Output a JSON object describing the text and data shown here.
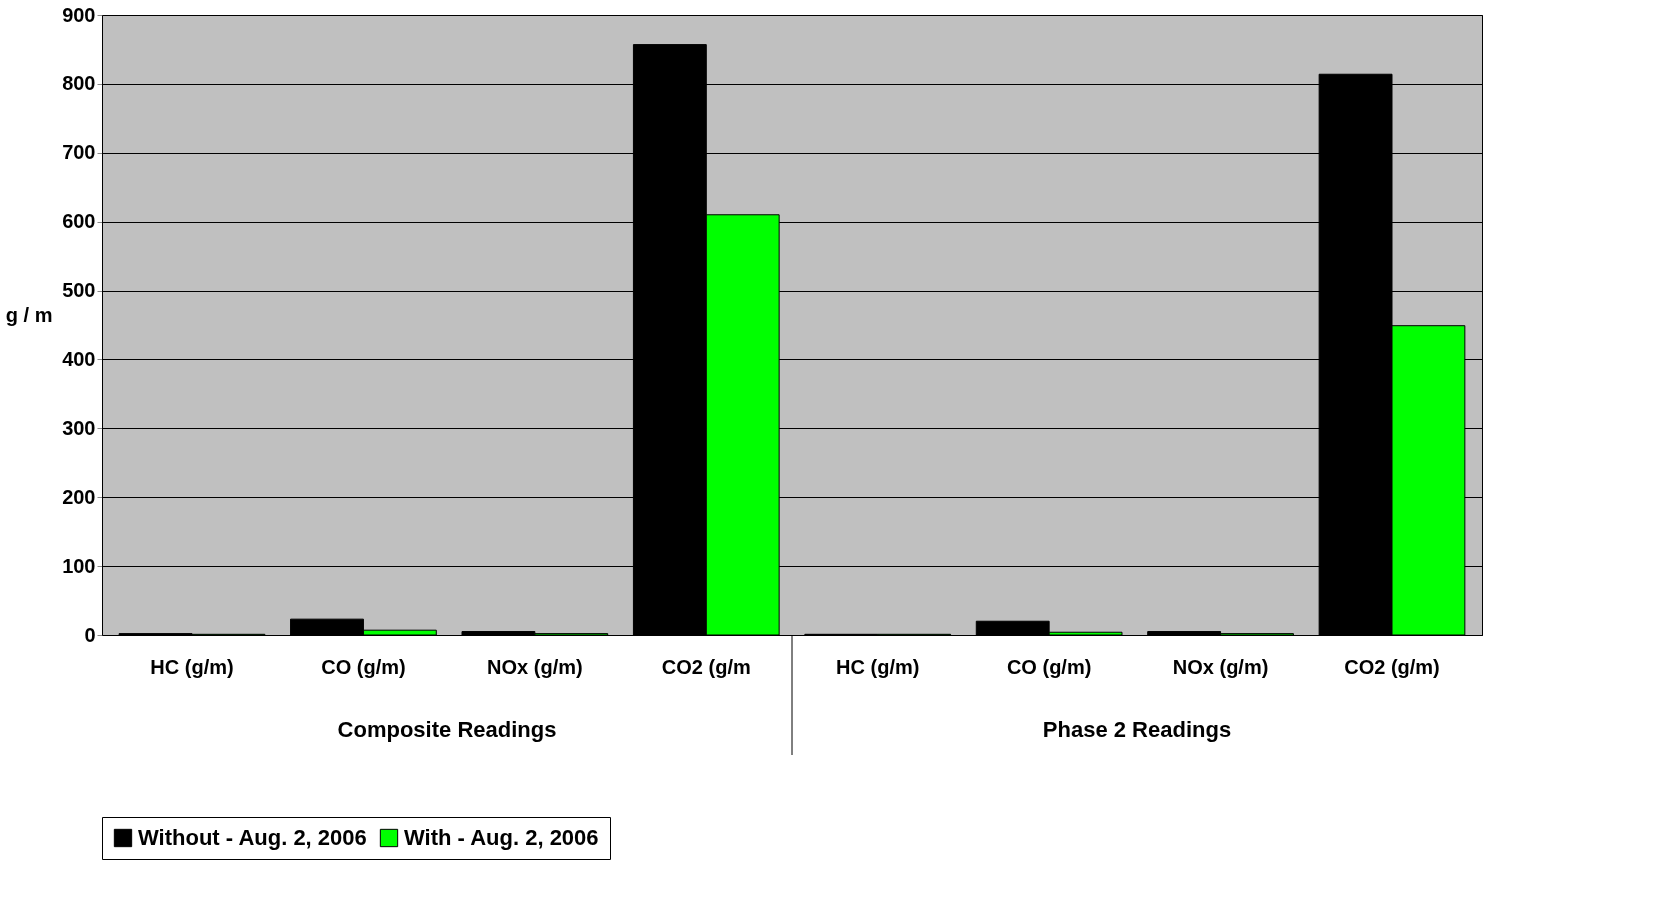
{
  "chart_data": {
    "type": "bar",
    "ylabel": "g / m",
    "categories": [
      "HC (g/m)",
      "CO (g/m)",
      "NOx (g/m)",
      "CO2 (g/m",
      "HC (g/m)",
      "CO (g/m)",
      "NOx (g/m)",
      "CO2 (g/m)"
    ],
    "series": [
      {
        "name": "Without - Aug. 2, 2006",
        "color": "#000000",
        "values": [
          2,
          23,
          5,
          857,
          1,
          20,
          5,
          814
        ]
      },
      {
        "name": "With - Aug. 2, 2006",
        "color": "#00ff00",
        "values": [
          1,
          7,
          2,
          610,
          1,
          4,
          2,
          449
        ]
      }
    ],
    "ylim": [
      0,
      900
    ],
    "yticks": [
      0,
      100,
      200,
      300,
      400,
      500,
      600,
      700,
      800,
      900
    ],
    "grid": "y",
    "legend": "bottom",
    "annotations": [
      "Composite Readings",
      "Phase 2 Readings"
    ]
  }
}
